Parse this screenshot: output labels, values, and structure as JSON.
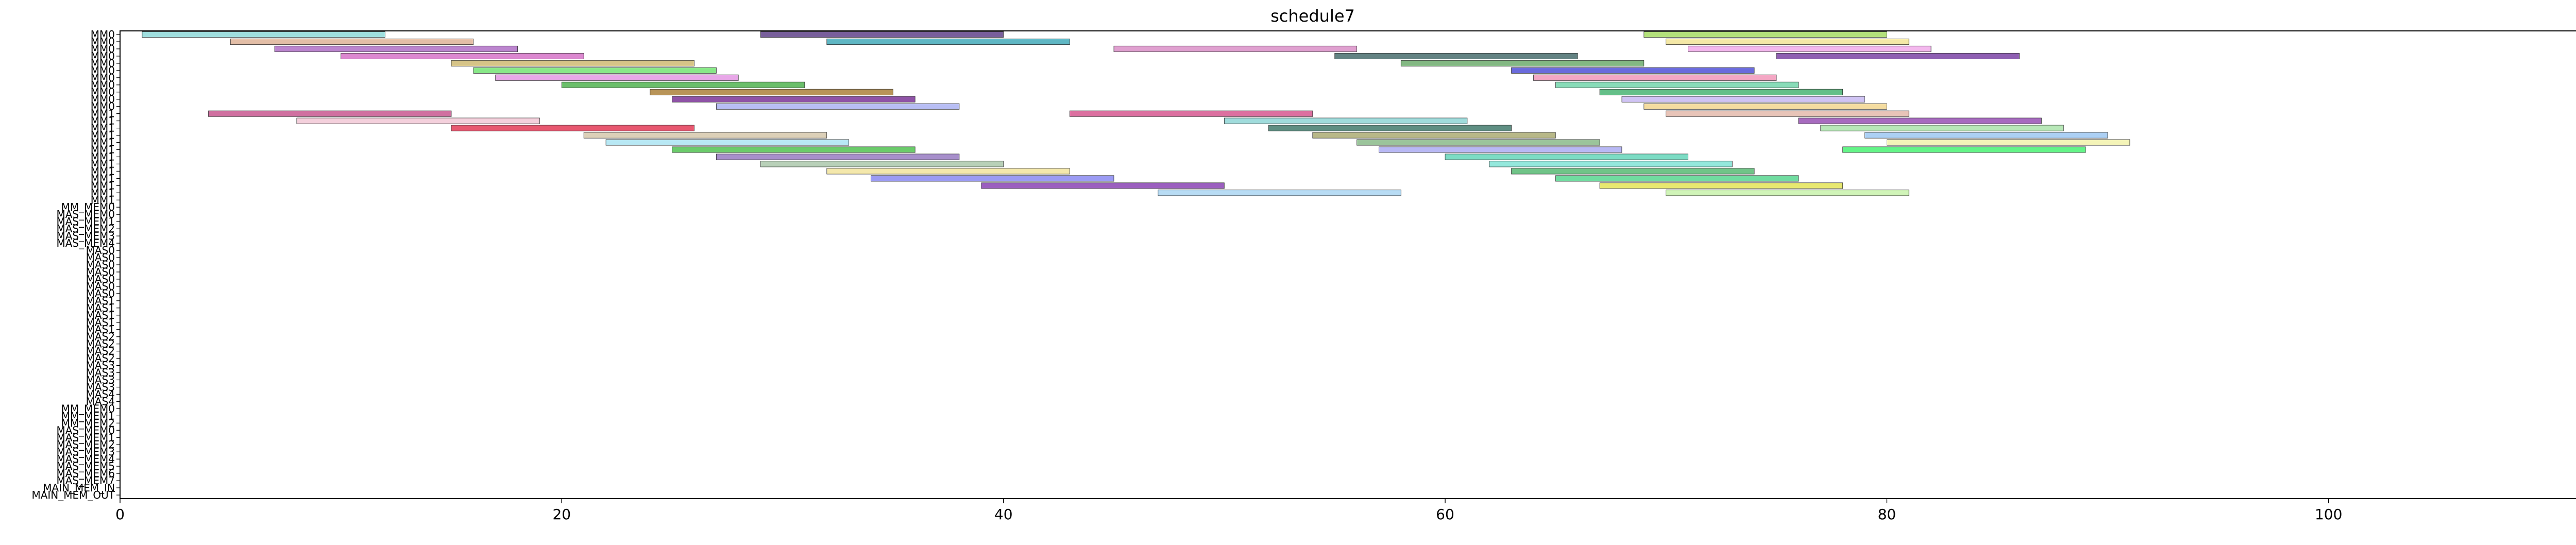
{
  "chart_data": {
    "type": "gantt",
    "title": "schedule7",
    "xlabel": "",
    "ylabel": "",
    "xlim": [
      0,
      113
    ],
    "xticks": [
      0,
      20,
      40,
      60,
      80,
      100
    ],
    "grid": false,
    "rows": [
      "MM0",
      "MM0",
      "MM0",
      "MM0",
      "MM0",
      "MM0",
      "MM0",
      "MM0",
      "MM0",
      "MM0",
      "MM0",
      "MM1",
      "MM1",
      "MM1",
      "MM1",
      "MM1",
      "MM1",
      "MM1",
      "MM1",
      "MM1",
      "MM1",
      "MM1",
      "MM1",
      "MM1",
      "MM_MEM0",
      "MAS_MEM0",
      "MAS_MEM1",
      "MAS_MEM2",
      "MAS_MEM3",
      "MAS_MEM4",
      "MAS0",
      "MAS0",
      "MAS0",
      "MAS0",
      "MAS0",
      "MAS0",
      "MAS0",
      "MAS1",
      "MAS1",
      "MAS1",
      "MAS1",
      "MAS1",
      "MAS2",
      "MAS2",
      "MAS2",
      "MAS2",
      "MAS3",
      "MAS3",
      "MAS3",
      "MAS3",
      "MAS4",
      "MAS4",
      "MM_MEM0",
      "MM_MEM1",
      "MM_MEM2",
      "MAS_MEM0",
      "MAS_MEM1",
      "MAS_MEM2",
      "MAS_MEM3",
      "MAS_MEM4",
      "MAS_MEM5",
      "MAS_MEM6",
      "MAS_MEM7",
      "MAIN_MEM_IN",
      "MAIN_MEM_OUT"
    ],
    "tasks": [
      {
        "row": 0,
        "start": 1,
        "end": 12,
        "color": "#7fd3d3"
      },
      {
        "row": 0,
        "start": 29,
        "end": 40,
        "color": "#4b2a7a"
      },
      {
        "row": 0,
        "start": 69,
        "end": 80,
        "color": "#9ad64f"
      },
      {
        "row": 1,
        "start": 5,
        "end": 16,
        "color": "#d9a88a"
      },
      {
        "row": 1,
        "start": 32,
        "end": 43,
        "color": "#2a9fb0"
      },
      {
        "row": 1,
        "start": 70,
        "end": 81,
        "color": "#f0e08a"
      },
      {
        "row": 2,
        "start": 7,
        "end": 18,
        "color": "#a55cbf"
      },
      {
        "row": 2,
        "start": 45,
        "end": 56,
        "color": "#d680c0"
      },
      {
        "row": 2,
        "start": 71,
        "end": 82,
        "color": "#f0a0e8"
      },
      {
        "row": 3,
        "start": 10,
        "end": 21,
        "color": "#d060c0"
      },
      {
        "row": 3,
        "start": 55,
        "end": 66,
        "color": "#2f5a5a"
      },
      {
        "row": 3,
        "start": 75,
        "end": 86,
        "color": "#6a2a9a"
      },
      {
        "row": 4,
        "start": 15,
        "end": 26,
        "color": "#c8b060"
      },
      {
        "row": 4,
        "start": 58,
        "end": 69,
        "color": "#5aa05a"
      },
      {
        "row": 5,
        "start": 16,
        "end": 27,
        "color": "#60e060"
      },
      {
        "row": 5,
        "start": 63,
        "end": 74,
        "color": "#3a3ad0"
      },
      {
        "row": 6,
        "start": 17,
        "end": 28,
        "color": "#e08ae0"
      },
      {
        "row": 6,
        "start": 64,
        "end": 75,
        "color": "#f08ab0"
      },
      {
        "row": 7,
        "start": 20,
        "end": 31,
        "color": "#3aaa3a"
      },
      {
        "row": 7,
        "start": 65,
        "end": 76,
        "color": "#60d0a0"
      },
      {
        "row": 8,
        "start": 24,
        "end": 35,
        "color": "#a07020"
      },
      {
        "row": 8,
        "start": 67,
        "end": 78,
        "color": "#30aa60"
      },
      {
        "row": 9,
        "start": 25,
        "end": 36,
        "color": "#6a1a8a"
      },
      {
        "row": 9,
        "start": 68,
        "end": 79,
        "color": "#c0b0f0"
      },
      {
        "row": 10,
        "start": 27,
        "end": 38,
        "color": "#a0a8f0"
      },
      {
        "row": 10,
        "start": 69,
        "end": 80,
        "color": "#f0d080"
      },
      {
        "row": 11,
        "start": 4,
        "end": 15,
        "color": "#c04080"
      },
      {
        "row": 11,
        "start": 43,
        "end": 54,
        "color": "#d04080"
      },
      {
        "row": 11,
        "start": 70,
        "end": 81,
        "color": "#e0b0a0"
      },
      {
        "row": 12,
        "start": 8,
        "end": 19,
        "color": "#f0c0d0"
      },
      {
        "row": 12,
        "start": 50,
        "end": 61,
        "color": "#80d0d0"
      },
      {
        "row": 12,
        "start": 76,
        "end": 87,
        "color": "#8a3aaa"
      },
      {
        "row": 13,
        "start": 15,
        "end": 26,
        "color": "#e02040"
      },
      {
        "row": 13,
        "start": 52,
        "end": 63,
        "color": "#2a6a5a"
      },
      {
        "row": 13,
        "start": 77,
        "end": 88,
        "color": "#a0e0a0"
      },
      {
        "row": 14,
        "start": 21,
        "end": 32,
        "color": "#d0c0a0"
      },
      {
        "row": 14,
        "start": 54,
        "end": 65,
        "color": "#a0a060"
      },
      {
        "row": 14,
        "start": 79,
        "end": 90,
        "color": "#90c0f0"
      },
      {
        "row": 15,
        "start": 22,
        "end": 33,
        "color": "#a0e0f0"
      },
      {
        "row": 15,
        "start": 56,
        "end": 67,
        "color": "#7ab07a"
      },
      {
        "row": 15,
        "start": 80,
        "end": 91,
        "color": "#f0f0a0"
      },
      {
        "row": 16,
        "start": 25,
        "end": 36,
        "color": "#3aba3a"
      },
      {
        "row": 16,
        "start": 57,
        "end": 68,
        "color": "#a0a0f0"
      },
      {
        "row": 16,
        "start": 78,
        "end": 89,
        "color": "#30f060"
      },
      {
        "row": 17,
        "start": 27,
        "end": 38,
        "color": "#8a6aba"
      },
      {
        "row": 17,
        "start": 60,
        "end": 71,
        "color": "#50d0b0"
      },
      {
        "row": 18,
        "start": 29,
        "end": 40,
        "color": "#a0c0a0"
      },
      {
        "row": 18,
        "start": 62,
        "end": 73,
        "color": "#70e0d0"
      },
      {
        "row": 19,
        "start": 32,
        "end": 43,
        "color": "#f0e090"
      },
      {
        "row": 19,
        "start": 63,
        "end": 74,
        "color": "#40b060"
      },
      {
        "row": 20,
        "start": 34,
        "end": 45,
        "color": "#7a7af0"
      },
      {
        "row": 20,
        "start": 65,
        "end": 76,
        "color": "#40d080"
      },
      {
        "row": 21,
        "start": 39,
        "end": 50,
        "color": "#7a2aaa"
      },
      {
        "row": 21,
        "start": 67,
        "end": 78,
        "color": "#e0e040"
      },
      {
        "row": 22,
        "start": 47,
        "end": 58,
        "color": "#a0d0f0"
      },
      {
        "row": 22,
        "start": 70,
        "end": 81,
        "color": "#c0f0a0"
      }
    ]
  }
}
